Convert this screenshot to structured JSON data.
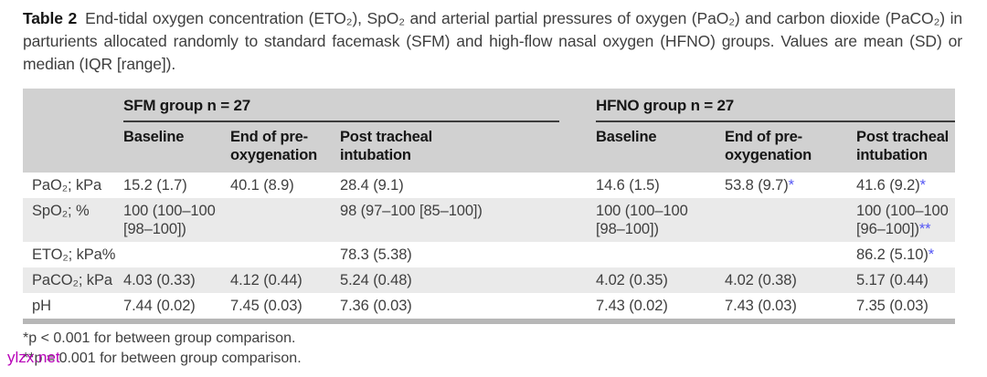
{
  "caption": {
    "label": "Table 2",
    "text": "End-tidal oxygen concentration (ETO₂), SpO₂ and arterial partial pressures of oxygen (PaO₂) and carbon dioxide (PaCO₂) in parturients allocated randomly to standard facemask (SFM) and high-flow nasal oxygen (HFNO) groups. Values are mean (SD) or median (IQR [range])."
  },
  "table": {
    "groups": [
      {
        "label": "SFM group n = 27"
      },
      {
        "label": "HFNO group n = 27"
      }
    ],
    "column_headers": [
      "Baseline",
      "End of pre-oxygenation",
      "Post tracheal intubation",
      "Baseline",
      "End of pre-oxygenation",
      "Post tracheal intubation"
    ],
    "rows": [
      {
        "label": "PaO₂; kPa",
        "cells": [
          {
            "v": "15.2 (1.7)"
          },
          {
            "v": "40.1 (8.9)"
          },
          {
            "v": "28.4 (9.1)"
          },
          {
            "v": "14.6 (1.5)"
          },
          {
            "v": "53.8 (9.7)",
            "m": "*"
          },
          {
            "v": "41.6 (9.2)",
            "m": "*"
          }
        ]
      },
      {
        "label": "SpO₂; %",
        "cells": [
          {
            "v": "100 (100–100 [98–100])"
          },
          {
            "v": ""
          },
          {
            "v": "98 (97–100 [85–100])"
          },
          {
            "v": "100 (100–100 [98–100])"
          },
          {
            "v": ""
          },
          {
            "v": "100 (100–100 [96–100])",
            "m": "**"
          }
        ]
      },
      {
        "label": "ETO₂; kPa%",
        "cells": [
          {
            "v": ""
          },
          {
            "v": ""
          },
          {
            "v": "78.3 (5.38)"
          },
          {
            "v": ""
          },
          {
            "v": ""
          },
          {
            "v": "86.2 (5.10)",
            "m": "*"
          }
        ]
      },
      {
        "label": "PaCO₂; kPa",
        "cells": [
          {
            "v": "4.03 (0.33)"
          },
          {
            "v": "4.12 (0.44)"
          },
          {
            "v": "5.24 (0.48)"
          },
          {
            "v": "4.02 (0.35)"
          },
          {
            "v": "4.02 (0.38)"
          },
          {
            "v": "5.17 (0.44)"
          }
        ]
      },
      {
        "label": "pH",
        "cells": [
          {
            "v": "7.44 (0.02)"
          },
          {
            "v": "7.45 (0.03)"
          },
          {
            "v": "7.36 (0.03)"
          },
          {
            "v": "7.43 (0.02)"
          },
          {
            "v": "7.43 (0.03)"
          },
          {
            "v": "7.35 (0.03)"
          }
        ]
      }
    ]
  },
  "footnotes": [
    "*p < 0.001 for between group comparison.",
    "**p = 0.001 for between group comparison."
  ],
  "watermark": "ylzx.net",
  "colors": {
    "significance_marker": "#5456f5",
    "watermark": "#b800b8",
    "header_band": "#d1d1d1",
    "row_shade": "#eaeaea",
    "bottom_rule": "#b7b7b7"
  }
}
